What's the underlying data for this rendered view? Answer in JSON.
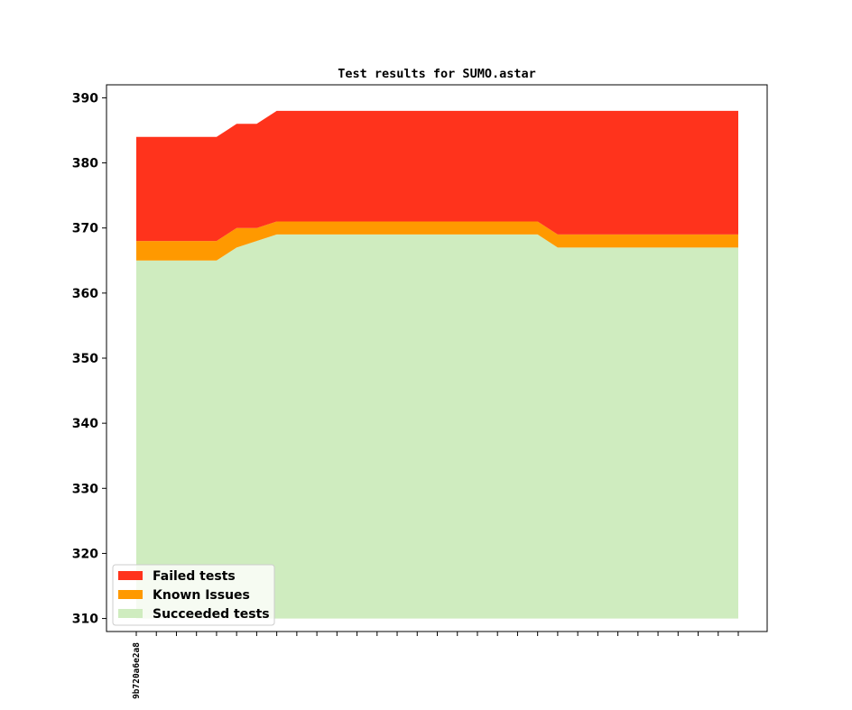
{
  "chart_data": {
    "type": "area",
    "title": "Test results for SUMO.astar",
    "xlabel": "",
    "ylabel": "",
    "ylim": [
      308,
      392
    ],
    "yticks": [
      310,
      320,
      330,
      340,
      350,
      360,
      370,
      380,
      390
    ],
    "x_tick_count": 31,
    "x_tick_labels": [
      "9b720a6e2a8"
    ],
    "grid": false,
    "legend_position": "lower-left",
    "series": [
      {
        "name": "Succeeded tests",
        "color": "#cfecbf",
        "values": [
          365,
          365,
          365,
          365,
          365,
          367,
          368,
          369,
          369,
          369,
          369,
          369,
          369,
          369,
          369,
          369,
          369,
          369,
          369,
          369,
          369,
          367,
          367,
          367,
          367,
          367,
          367,
          367,
          367,
          367,
          367
        ]
      },
      {
        "name": "Known Issues",
        "color": "#ff9900",
        "values": [
          3,
          3,
          3,
          3,
          3,
          3,
          2,
          2,
          2,
          2,
          2,
          2,
          2,
          2,
          2,
          2,
          2,
          2,
          2,
          2,
          2,
          2,
          2,
          2,
          2,
          2,
          2,
          2,
          2,
          2,
          2
        ]
      },
      {
        "name": "Failed tests",
        "color": "#ff331c",
        "values": [
          16,
          16,
          16,
          16,
          16,
          16,
          16,
          17,
          17,
          17,
          17,
          17,
          17,
          17,
          17,
          17,
          17,
          17,
          17,
          17,
          17,
          19,
          19,
          19,
          19,
          19,
          19,
          19,
          19,
          19,
          19
        ]
      }
    ],
    "baseline": 310
  }
}
